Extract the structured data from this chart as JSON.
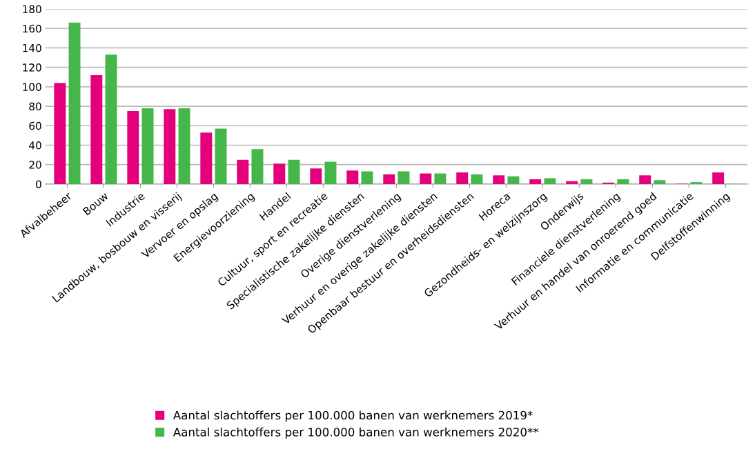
{
  "chart_data": {
    "type": "bar",
    "categories": [
      "Afvalbeheer",
      "Bouw",
      "Industrie",
      "Landbouw, bosbouw en visserij",
      "Vervoer en opslag",
      "Energievoorziening",
      "Handel",
      "Cultuur, sport en recreatie",
      "Specialistische zakelijke diensten",
      "Overige dienstverlening",
      "Verhuur en overige zakelijke diensten",
      "Openbaar bestuur en overheidsdiensten",
      "Horeca",
      "Gezondheids- en welzijnszorg",
      "Onderwijs",
      "Financiele dienstverlening",
      "Verhuur en handel van onroerend goed",
      "Informatie en communicatie",
      "Delfstoffenwinning"
    ],
    "series": [
      {
        "name": "Aantal slachtoffers per 100.000 banen van werknemers 2019*",
        "color": "#e3007a",
        "values": [
          104,
          112,
          75,
          77,
          53,
          25,
          21,
          16,
          14,
          10,
          11,
          12,
          9,
          5,
          3,
          1.5,
          9,
          0.5,
          12
        ]
      },
      {
        "name": "Aantal slachtoffers per 100.000 banen van werknemers 2020**",
        "color": "#45b649",
        "values": [
          166,
          133,
          78,
          78,
          57,
          36,
          25,
          23,
          13,
          13,
          11,
          10,
          8,
          6,
          5,
          5,
          4,
          2,
          0.3
        ]
      }
    ],
    "ylim": [
      0,
      180
    ],
    "yticks": [
      0,
      20,
      40,
      60,
      80,
      100,
      120,
      140,
      160,
      180
    ],
    "grid": "y",
    "legend": "bottom"
  }
}
